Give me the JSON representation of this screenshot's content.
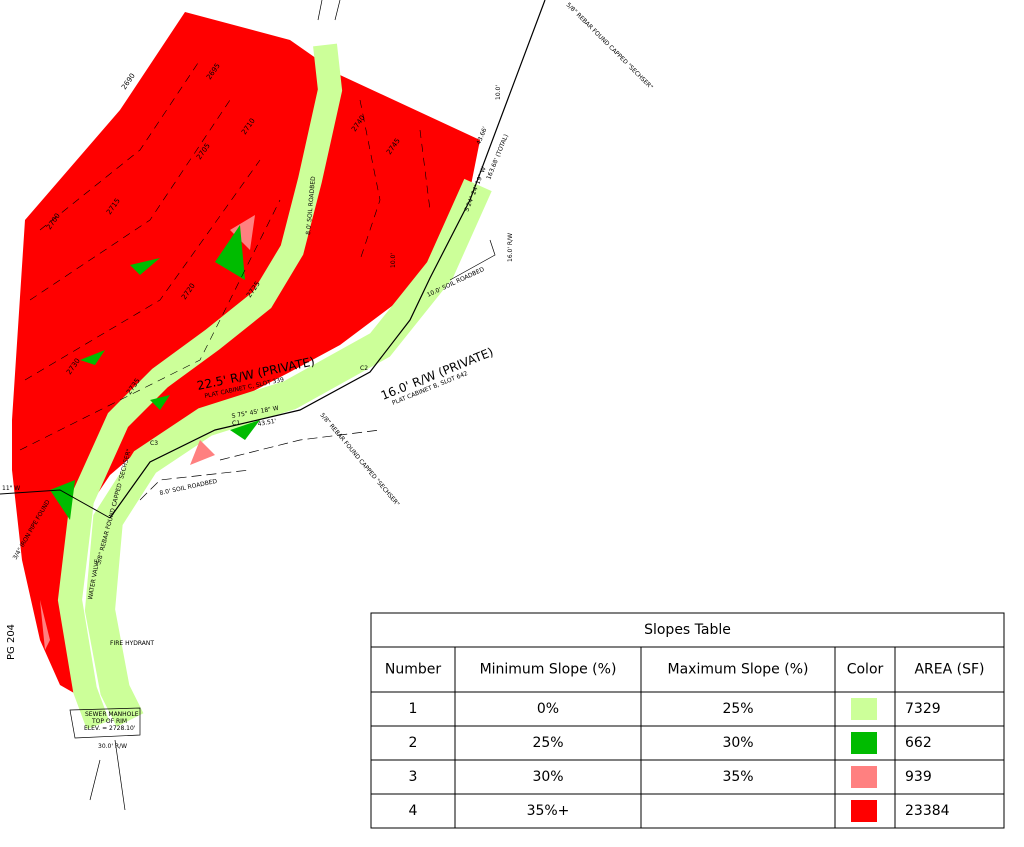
{
  "map": {
    "labels": {
      "row_a": "22.5' R/W (PRIVATE)",
      "plat_c": "PLAT CABINET C, SLOT 339",
      "row_b": "16.0' R/W (PRIVATE)",
      "plat_b": "PLAT CABINET B, SLOT 642",
      "roadbed_8_top": "8.0' SOIL ROADBED",
      "roadbed_8_bottom": "8.0' SOIL ROADBED",
      "roadbed_10": "10.0' SOIL ROADBED",
      "bearing_1": "S 75° 45' 18\" W",
      "dist_1": "43.51'",
      "bearing_2": "S 24° 24' 19\" W",
      "dist_2": "163.68' (TOTAL)",
      "dist_3": "43.66'",
      "rebar_top": "5/8\" REBAR FOUND CAPPED \"SECHSER\"",
      "rebar_mid": "5/8\" REBAR FOUND CAPPED \"SECHSER\"",
      "rebar_low": "5/8\" REBAR FOUND CAPPED \"SECHSER\"",
      "iron_pipe": "3/4\" IRON PIPE FOUND",
      "fire_hydrant": "FIRE HYDRANT",
      "water_valve": "WATER VALVE",
      "manhole_1": "SEWER MANHOLE",
      "manhole_2": "TOP OF RIM",
      "manhole_3": "ELEV. = 2728.10'",
      "row_c": "30.0' R/W",
      "pg": "PG 204",
      "bearing_left": "11\" W",
      "c1": "C1",
      "c2": "C2",
      "c3": "C3",
      "row_16": "16.0' R/W",
      "row_10": "10.0'",
      "row_10b": "10.0'"
    },
    "contours": [
      "2690",
      "2695",
      "2700",
      "2705",
      "2710",
      "2715",
      "2720",
      "2725",
      "2730",
      "2735",
      "2740",
      "2745"
    ]
  },
  "table": {
    "title": "Slopes Table",
    "headers": [
      "Number",
      "Minimum Slope (%)",
      "Maximum Slope (%)",
      "Color",
      "AREA (SF)"
    ],
    "rows": [
      {
        "number": "1",
        "min": "0%",
        "max": "25%",
        "color": "#ccff99",
        "area": "7329"
      },
      {
        "number": "2",
        "min": "25%",
        "max": "30%",
        "color": "#00bb00",
        "area": "662"
      },
      {
        "number": "3",
        "min": "30%",
        "max": "35%",
        "color": "#ff8080",
        "area": "939"
      },
      {
        "number": "4",
        "min": "35%+",
        "max": null,
        "color": "#ff0000",
        "area": "23384"
      }
    ]
  }
}
